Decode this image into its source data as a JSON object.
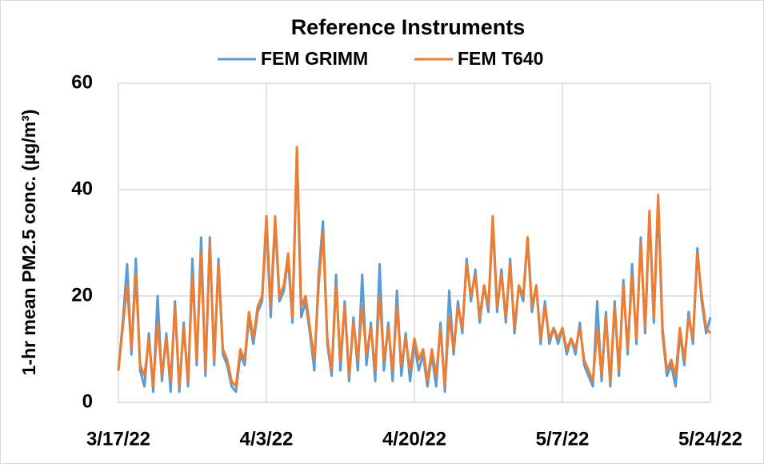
{
  "chart_data": {
    "type": "line",
    "title": "Reference Instruments",
    "y_label": "1-hr mean PM2.5 conc. (µg/m³)",
    "x": [
      0,
      0.5,
      1,
      1.5,
      2,
      2.5,
      3,
      3.5,
      4,
      4.5,
      5,
      5.5,
      6,
      6.5,
      7,
      7.5,
      8,
      8.5,
      9,
      9.5,
      10,
      10.5,
      11,
      11.5,
      12,
      12.5,
      13,
      13.5,
      14,
      14.5,
      15,
      15.5,
      16,
      16.5,
      17,
      17.5,
      18,
      18.5,
      19,
      19.5,
      20,
      20.5,
      21,
      21.5,
      22,
      22.5,
      23,
      23.5,
      24,
      24.5,
      25,
      25.5,
      26,
      26.5,
      27,
      27.5,
      28,
      28.5,
      29,
      29.5,
      30,
      30.5,
      31,
      31.5,
      32,
      32.5,
      33,
      33.5,
      34,
      34.5,
      35,
      35.5,
      36,
      36.5,
      37,
      37.5,
      38,
      38.5,
      39,
      39.5,
      40,
      40.5,
      41,
      41.5,
      42,
      42.5,
      43,
      43.5,
      44,
      44.5,
      45,
      45.5,
      46,
      46.5,
      47,
      47.5,
      48,
      48.5,
      49,
      49.5,
      50,
      50.5,
      51,
      51.5,
      52,
      52.5,
      53,
      53.5,
      54,
      54.5,
      55,
      55.5,
      56,
      56.5,
      57,
      57.5,
      58,
      58.5,
      59,
      59.5,
      60,
      60.5,
      61,
      61.5,
      62,
      62.5,
      63,
      63.5,
      64,
      64.5,
      65,
      65.5,
      66,
      66.5,
      67,
      67.5,
      68
    ],
    "series": [
      {
        "name": "FEM GRIMM",
        "color": "#5b9bd5",
        "values": [
          6,
          15,
          26,
          9,
          27,
          6,
          3,
          13,
          2,
          20,
          4,
          13,
          2,
          19,
          2,
          15,
          3,
          27,
          7,
          31,
          5,
          31,
          7,
          27,
          9,
          7,
          3,
          2,
          9,
          7,
          16,
          11,
          17,
          19,
          34,
          16,
          34,
          19,
          21,
          27,
          15,
          47,
          16,
          19,
          13,
          6,
          24,
          34,
          11,
          5,
          24,
          6,
          19,
          4,
          16,
          6,
          24,
          7,
          15,
          4,
          26,
          6,
          15,
          4,
          21,
          5,
          13,
          4,
          11,
          6,
          9,
          3,
          9,
          3,
          15,
          2,
          21,
          9,
          19,
          13,
          27,
          19,
          25,
          15,
          22,
          17,
          34,
          17,
          25,
          15,
          27,
          13,
          22,
          19,
          31,
          17,
          22,
          11,
          19,
          11,
          14,
          11,
          14,
          9,
          12,
          9,
          15,
          7,
          5,
          3,
          19,
          4,
          17,
          3,
          19,
          5,
          23,
          9,
          26,
          11,
          31,
          13,
          35,
          15,
          38,
          13,
          5,
          7,
          3,
          13,
          7,
          17,
          11,
          29,
          19,
          13,
          16
        ]
      },
      {
        "name": "FEM T640",
        "color": "#ed7d31",
        "values": [
          6,
          14,
          22,
          10,
          24,
          7,
          5,
          12,
          3,
          15,
          5,
          12,
          4,
          18,
          3,
          14,
          4,
          24,
          8,
          28,
          6,
          30,
          8,
          26,
          10,
          8,
          4,
          3,
          10,
          8,
          17,
          12,
          18,
          20,
          35,
          18,
          35,
          20,
          22,
          28,
          16,
          48,
          18,
          20,
          14,
          8,
          22,
          32,
          12,
          6,
          22,
          8,
          18,
          5,
          15,
          8,
          18,
          9,
          14,
          6,
          20,
          8,
          14,
          6,
          18,
          7,
          12,
          6,
          12,
          8,
          10,
          4,
          10,
          5,
          14,
          3,
          16,
          10,
          18,
          14,
          26,
          20,
          24,
          16,
          22,
          18,
          35,
          18,
          24,
          16,
          26,
          14,
          22,
          20,
          31,
          18,
          22,
          12,
          18,
          12,
          14,
          12,
          14,
          10,
          12,
          10,
          14,
          8,
          6,
          4,
          14,
          5,
          16,
          4,
          18,
          6,
          22,
          10,
          24,
          12,
          30,
          14,
          36,
          16,
          39,
          14,
          6,
          8,
          5,
          14,
          8,
          16,
          12,
          28,
          20,
          14,
          13
        ]
      }
    ],
    "xlim": [
      0,
      68
    ],
    "xticks": [
      {
        "value": 0,
        "label": "3/17/22"
      },
      {
        "value": 17,
        "label": "4/3/22"
      },
      {
        "value": 34,
        "label": "4/20/22"
      },
      {
        "value": 51,
        "label": "5/7/22"
      },
      {
        "value": 68,
        "label": "5/24/22"
      }
    ],
    "ylim": [
      0,
      60
    ],
    "yticks": [
      0,
      20,
      40,
      60
    ],
    "grid": true,
    "legend": "top"
  }
}
